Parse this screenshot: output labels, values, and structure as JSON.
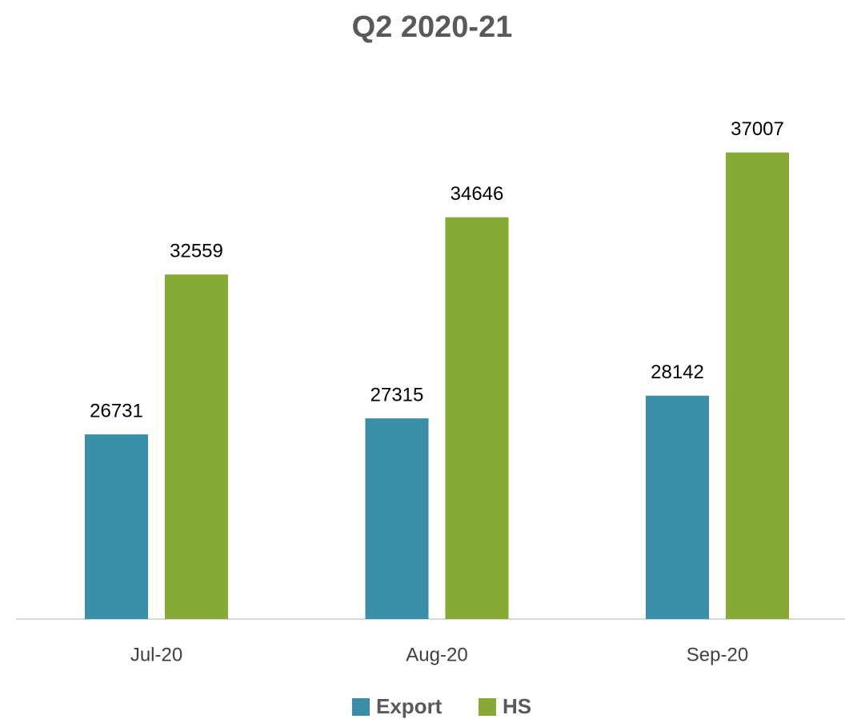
{
  "chart_data": {
    "type": "bar",
    "title": "Q2 2020-21",
    "categories": [
      "Jul-20",
      "Aug-20",
      "Sep-20"
    ],
    "series": [
      {
        "name": "Export",
        "color": "#3a8fa6",
        "values": [
          26731,
          27315,
          28142
        ]
      },
      {
        "name": "HS",
        "color": "#86aa35",
        "values": [
          32559,
          34646,
          37007
        ]
      }
    ],
    "ylim": [
      20000,
      40000
    ]
  }
}
